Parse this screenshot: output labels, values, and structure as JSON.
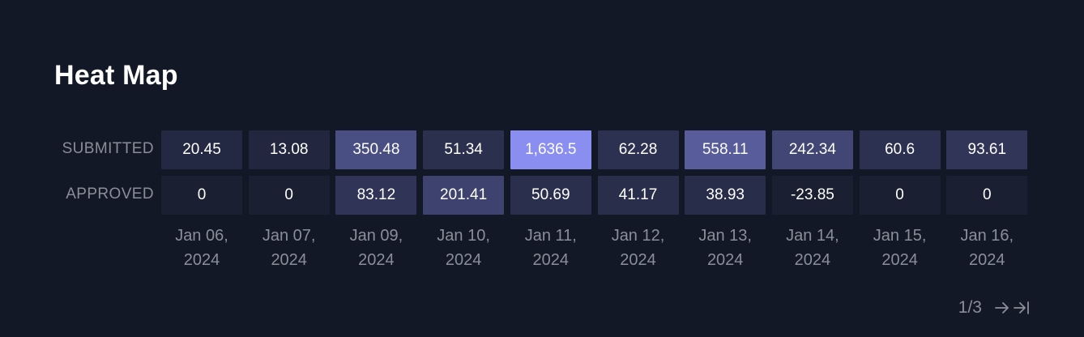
{
  "title": "Heat Map",
  "pagination": {
    "text": "1/3",
    "next_icon": "arrow-right-icon",
    "last_icon": "arrow-right-to-line-icon"
  },
  "colors": {
    "background": "#131826",
    "cell_base": "#1a1f32",
    "cell_max": "#8a8ef0"
  },
  "chart_data": {
    "type": "heatmap",
    "title": "Heat Map",
    "rows": [
      "SUBMITTED",
      "APPROVED"
    ],
    "columns": [
      [
        "Jan 06,",
        "2024"
      ],
      [
        "Jan 07,",
        "2024"
      ],
      [
        "Jan 09,",
        "2024"
      ],
      [
        "Jan 10,",
        "2024"
      ],
      [
        "Jan 11,",
        "2024"
      ],
      [
        "Jan 12,",
        "2024"
      ],
      [
        "Jan 13,",
        "2024"
      ],
      [
        "Jan 14,",
        "2024"
      ],
      [
        "Jan 15,",
        "2024"
      ],
      [
        "Jan 16,",
        "2024"
      ]
    ],
    "values": [
      [
        20.45,
        13.08,
        350.48,
        51.34,
        1636.5,
        62.28,
        558.11,
        242.34,
        60.6,
        93.61
      ],
      [
        0,
        0,
        83.12,
        201.41,
        50.69,
        41.17,
        38.93,
        -23.85,
        0,
        0
      ]
    ],
    "labels": [
      [
        "20.45",
        "13.08",
        "350.48",
        "51.34",
        "1,636.5",
        "62.28",
        "558.11",
        "242.34",
        "60.6",
        "93.61"
      ],
      [
        "0",
        "0",
        "83.12",
        "201.41",
        "50.69",
        "41.17",
        "38.93",
        "-23.85",
        "0",
        "0"
      ]
    ]
  }
}
